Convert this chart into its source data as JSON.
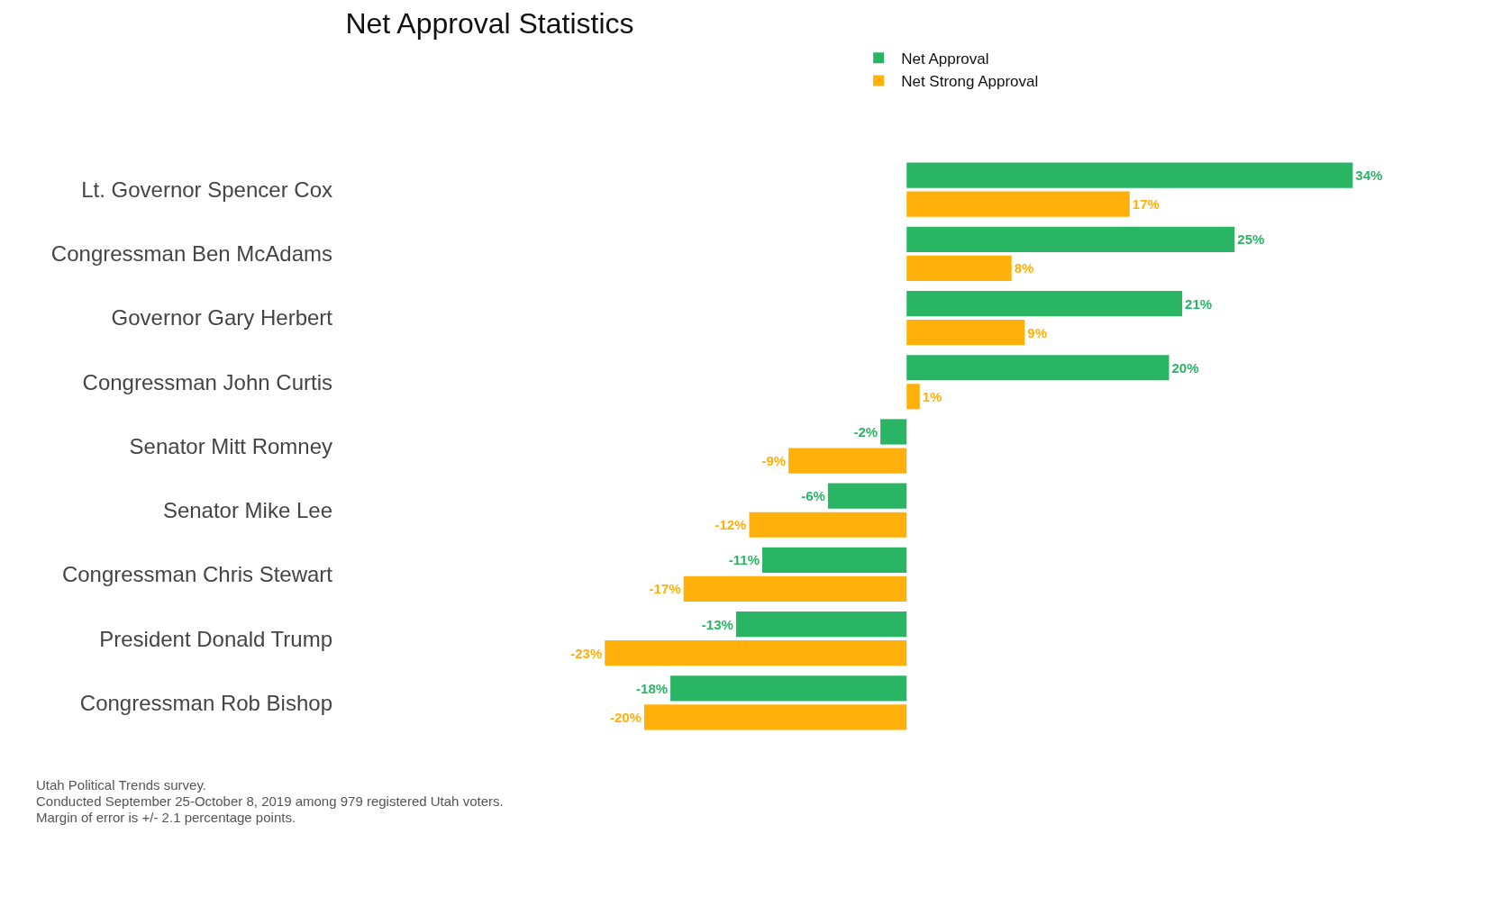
{
  "chart_data": {
    "type": "bar",
    "orientation": "horizontal",
    "title": "Net Approval Statistics",
    "categories": [
      "Lt. Governor Spencer Cox",
      "Congressman Ben McAdams",
      "Governor Gary Herbert",
      "Congressman John Curtis",
      "Senator Mitt Romney",
      "Senator Mike Lee",
      "Congressman Chris Stewart",
      "President Donald Trump",
      "Congressman Rob Bishop"
    ],
    "series": [
      {
        "name": "Net Approval",
        "color": "#2ab565",
        "values": [
          34,
          25,
          21,
          20,
          -2,
          -6,
          -11,
          -13,
          -18
        ],
        "value_labels": [
          "34%",
          "25%",
          "21%",
          "20%",
          "-2%",
          "-6%",
          "-11%",
          "-13%",
          "-18%"
        ]
      },
      {
        "name": "Net Strong Approval",
        "color": "#ffb00a",
        "values": [
          17,
          8,
          9,
          1,
          -9,
          -12,
          -17,
          -23,
          -20
        ],
        "value_labels": [
          "17%",
          "8%",
          "9%",
          "1%",
          "-9%",
          "-12%",
          "-17%",
          "-23%",
          "-20%"
        ]
      }
    ],
    "legend": "top",
    "grid": false,
    "annotations": [
      "Utah Political Trends survey.",
      "Conducted September 25-October 8, 2019 among 979 registered Utah voters.",
      "Margin of error is +/- 2.1 percentage points."
    ]
  }
}
